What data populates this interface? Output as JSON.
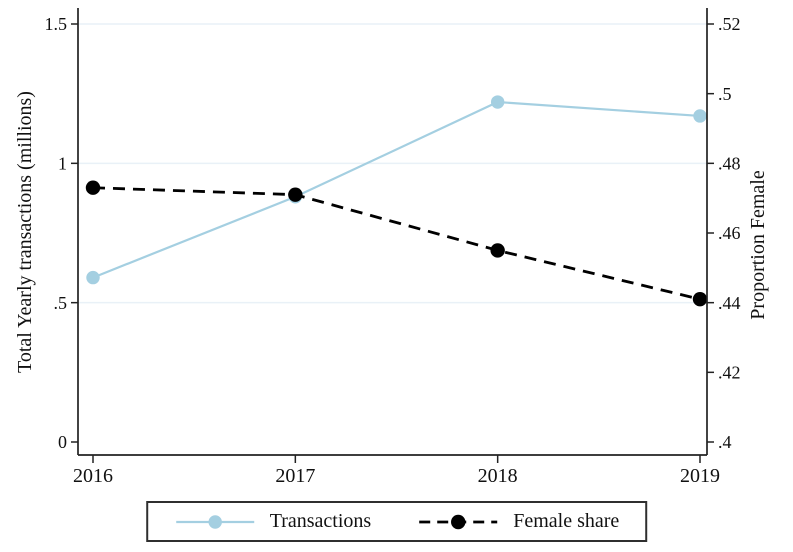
{
  "figure": {
    "background": "#ffffff",
    "text_color": "#111111",
    "axis_color": "#222222"
  },
  "chart_data": {
    "type": "line",
    "title": "",
    "x": [
      2016,
      2017,
      2018,
      2019
    ],
    "x_tick_labels": [
      "2016",
      "2017",
      "2018",
      "2019"
    ],
    "series": [
      {
        "name": "Transactions",
        "axis": "left",
        "values": [
          0.59,
          0.88,
          1.22,
          1.17
        ],
        "color": "#a4cfe1",
        "style": "solid",
        "marker": "circle"
      },
      {
        "name": "Female share",
        "axis": "right",
        "values": [
          0.473,
          0.471,
          0.455,
          0.441
        ],
        "color": "#000000",
        "style": "dashed",
        "marker": "circle"
      }
    ],
    "left_axis": {
      "label": "Total Yearly transactions (millions)",
      "range": [
        0,
        1.5
      ],
      "ticks": [
        0,
        0.5,
        1,
        1.5
      ],
      "tick_labels": [
        "0",
        ".5",
        "1",
        "1.5"
      ]
    },
    "right_axis": {
      "label": "Proportion Female",
      "range": [
        0.4,
        0.52
      ],
      "ticks": [
        0.4,
        0.42,
        0.44,
        0.46,
        0.48,
        0.5,
        0.52
      ],
      "tick_labels": [
        ".4",
        ".42",
        ".44",
        ".46",
        ".48",
        ".5",
        ".52"
      ]
    },
    "grid": {
      "left_values": [
        0.5,
        1,
        1.5
      ],
      "color": "#e9f1f7"
    },
    "legend": {
      "position": "bottom-center",
      "items": [
        {
          "label": "Transactions"
        },
        {
          "label": "Female share"
        }
      ]
    }
  }
}
